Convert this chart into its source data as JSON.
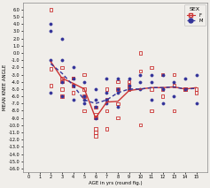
{
  "title": "",
  "xlabel": "AGE in yrs (round fig.)",
  "ylabel": "MEAN KNEE ANGLE",
  "xlim": [
    -0.5,
    16
  ],
  "ylim": [
    -16.5,
    7
  ],
  "yticks": [
    6,
    5,
    4,
    3,
    2,
    1,
    0,
    -1,
    -2,
    -3,
    -4,
    -5,
    -6,
    -7,
    -8,
    -9,
    -10,
    -11,
    -12,
    -13,
    -14,
    -15,
    -16
  ],
  "xticks": [
    0,
    1,
    2,
    3,
    4,
    5,
    6,
    7,
    8,
    9,
    10,
    11,
    12,
    13,
    14,
    15
  ],
  "legend_title": "SEX",
  "female_color": "#cc3333",
  "male_color": "#333399",
  "bg_color": "#f0eeea",
  "female_line": [
    2,
    -1.2,
    3,
    -3.5,
    4,
    -4.2,
    5,
    -5.0,
    6,
    -9.0,
    7,
    -6.8,
    8,
    -6.7,
    9,
    -5.2,
    10,
    -5.0,
    11,
    -4.8,
    12,
    -4.8,
    13,
    -4.7,
    14,
    -5.0,
    15,
    -4.8
  ],
  "male_line": [
    2,
    -1.5,
    3,
    -2.8,
    4,
    -4.5,
    5,
    -6.5,
    6,
    -7.0,
    7,
    -6.5,
    8,
    -5.5,
    9,
    -5.0,
    10,
    -5.0,
    11,
    -4.8,
    12,
    -4.8,
    13,
    -4.7,
    14,
    -5.0,
    15,
    -4.9
  ],
  "female_scatter_x": [
    2,
    2,
    2,
    3,
    3,
    3,
    3,
    3,
    4,
    4,
    4,
    4,
    5,
    5,
    5,
    5,
    6,
    6,
    6,
    6,
    6,
    6,
    7,
    7,
    7,
    7,
    8,
    8,
    8,
    8,
    9,
    9,
    9,
    10,
    10,
    10,
    11,
    11,
    11,
    12,
    12,
    12,
    13,
    13,
    13,
    14,
    14,
    15,
    15
  ],
  "female_scatter_y": [
    6,
    -2.2,
    -4.5,
    -2,
    -3.5,
    -4,
    -5,
    -6,
    -3.5,
    -4.5,
    -5.5,
    -3.5,
    -3,
    -5,
    -6,
    -8,
    -7.5,
    -9,
    -8.5,
    -10.5,
    -11,
    -11.5,
    -5,
    -6.5,
    -8,
    -10.5,
    -4,
    -5,
    -7,
    -9,
    -4,
    -5,
    -4.5,
    0,
    -2.5,
    -10,
    -2,
    -5,
    -8,
    -3,
    -5,
    -6,
    -3,
    -4.5,
    -8,
    -5,
    -5,
    -5,
    -5.5
  ],
  "male_scatter_x": [
    2,
    2,
    2,
    2,
    3,
    3,
    3,
    3,
    4,
    4,
    4,
    4,
    5,
    5,
    5,
    5,
    6,
    6,
    6,
    6,
    7,
    7,
    7,
    7,
    8,
    8,
    8,
    8,
    9,
    9,
    9,
    10,
    10,
    10,
    11,
    11,
    11,
    12,
    12,
    12,
    13,
    13,
    14,
    14,
    15,
    15
  ],
  "male_scatter_y": [
    4,
    3,
    -1,
    -5.5,
    2,
    -1,
    -4,
    -6,
    -2,
    -3.5,
    -4.5,
    -6.5,
    -4,
    -6,
    -7,
    -6.5,
    -5,
    -6.5,
    -7.5,
    -9,
    -3.5,
    -5.5,
    -7,
    -6.5,
    -3.5,
    -5,
    -5.5,
    -7.5,
    -3.5,
    -4.5,
    -5,
    -3,
    -4,
    -5,
    -3,
    -4,
    -6.5,
    -3,
    -5,
    -7,
    -4,
    -6,
    -3.5,
    -5,
    -3,
    -7
  ]
}
